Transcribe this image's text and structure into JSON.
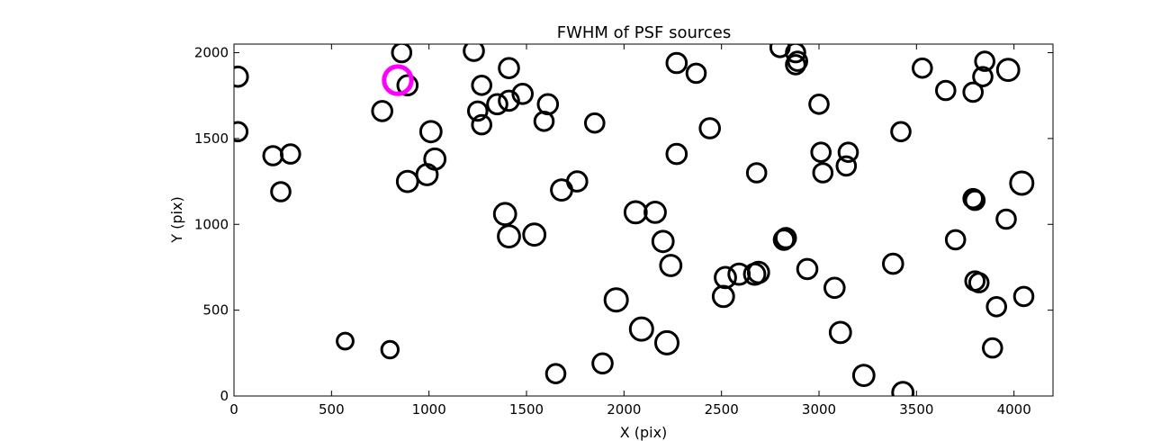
{
  "chart_data": {
    "type": "scatter",
    "title": "FWHM of PSF sources",
    "xlabel": "X (pix)",
    "ylabel": "Y (pix)",
    "xlim": [
      0,
      4200
    ],
    "ylim": [
      0,
      2050
    ],
    "xticks": [
      0,
      500,
      1000,
      1500,
      2000,
      2500,
      3000,
      3500,
      4000
    ],
    "yticks": [
      0,
      500,
      1000,
      1500,
      2000
    ],
    "grid": false,
    "marker": "open-circle",
    "colors": {
      "default": "#000000",
      "highlight": "#ff00ff"
    },
    "series": [
      {
        "x": [
          20,
          20,
          200,
          290,
          240,
          860,
          760,
          890,
          1010,
          1030,
          990,
          890,
          570,
          800,
          1230,
          1270,
          1250,
          1270,
          1350,
          1410,
          1480,
          1410,
          1390,
          1410,
          1610,
          1590,
          1540,
          1850,
          1680,
          1760,
          1960,
          2060,
          2090,
          2220,
          2160,
          2200,
          2240,
          2270,
          2370,
          2270,
          2440,
          2680,
          2800,
          2880,
          2890,
          2880,
          2820,
          2830,
          2940,
          3000,
          3010,
          3150,
          3140,
          3020,
          3080,
          3110,
          3230,
          3430,
          3380,
          3420,
          3530,
          3650,
          3790,
          3840,
          3850,
          3970,
          3790,
          3800,
          4040,
          3960,
          3700,
          3800,
          3820,
          3910,
          3890,
          4050,
          1890,
          1650,
          2520,
          2510,
          2670,
          2590,
          2690
        ],
        "y": [
          1860,
          1540,
          1400,
          1410,
          1190,
          2000,
          1660,
          1810,
          1540,
          1380,
          1290,
          1250,
          320,
          270,
          2010,
          1810,
          1660,
          1580,
          1700,
          1910,
          1760,
          1720,
          1060,
          930,
          1700,
          1600,
          940,
          1590,
          1200,
          1250,
          560,
          1070,
          390,
          310,
          1070,
          900,
          760,
          1940,
          1880,
          1410,
          1560,
          1300,
          2030,
          2000,
          1950,
          1930,
          910,
          920,
          740,
          1700,
          1420,
          1420,
          1340,
          1300,
          630,
          370,
          120,
          20,
          770,
          1540,
          1910,
          1780,
          1770,
          1860,
          1950,
          1900,
          1150,
          1140,
          1240,
          1030,
          910,
          670,
          660,
          520,
          280,
          580,
          190,
          130,
          690,
          580,
          710,
          710,
          720
        ],
        "fwhm": [
          100,
          95,
          95,
          95,
          95,
          95,
          100,
          100,
          105,
          105,
          105,
          105,
          82,
          85,
          100,
          95,
          95,
          95,
          100,
          100,
          100,
          100,
          110,
          110,
          100,
          95,
          110,
          95,
          105,
          100,
          115,
          110,
          115,
          115,
          105,
          105,
          105,
          100,
          95,
          100,
          100,
          95,
          95,
          95,
          95,
          95,
          100,
          100,
          100,
          95,
          95,
          95,
          95,
          95,
          100,
          105,
          105,
          105,
          100,
          95,
          95,
          95,
          95,
          95,
          95,
          110,
          95,
          95,
          115,
          95,
          95,
          95,
          95,
          95,
          95,
          95,
          100,
          95,
          105,
          105,
          105,
          105,
          105
        ]
      },
      {
        "name": "",
        "x": [
          840
        ],
        "y": [
          1840
        ],
        "fwhm": [
          140
        ]
      }
    ]
  }
}
